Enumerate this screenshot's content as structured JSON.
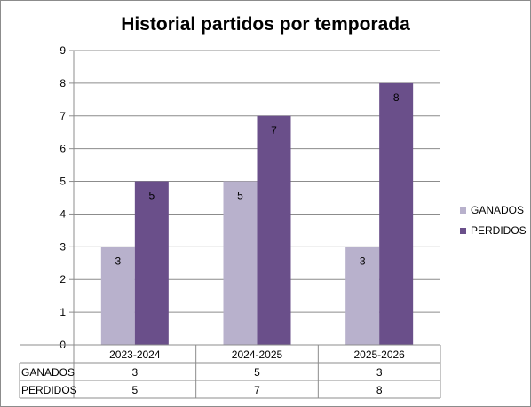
{
  "chart_data": {
    "type": "bar",
    "title": "Historial partidos por temporada",
    "categories": [
      "2023-2024",
      "2024-2025",
      "2025-2026"
    ],
    "series": [
      {
        "name": "GANADOS",
        "values": [
          3,
          5,
          3
        ],
        "color": "#b8b1cc"
      },
      {
        "name": "PERDIDOS",
        "values": [
          5,
          7,
          8
        ],
        "color": "#6a4f8a"
      }
    ],
    "ylim": [
      0,
      9
    ],
    "yticks": [
      0,
      1,
      2,
      3,
      4,
      5,
      6,
      7,
      8,
      9
    ],
    "grid": true,
    "legend": "right",
    "data_table": true
  }
}
